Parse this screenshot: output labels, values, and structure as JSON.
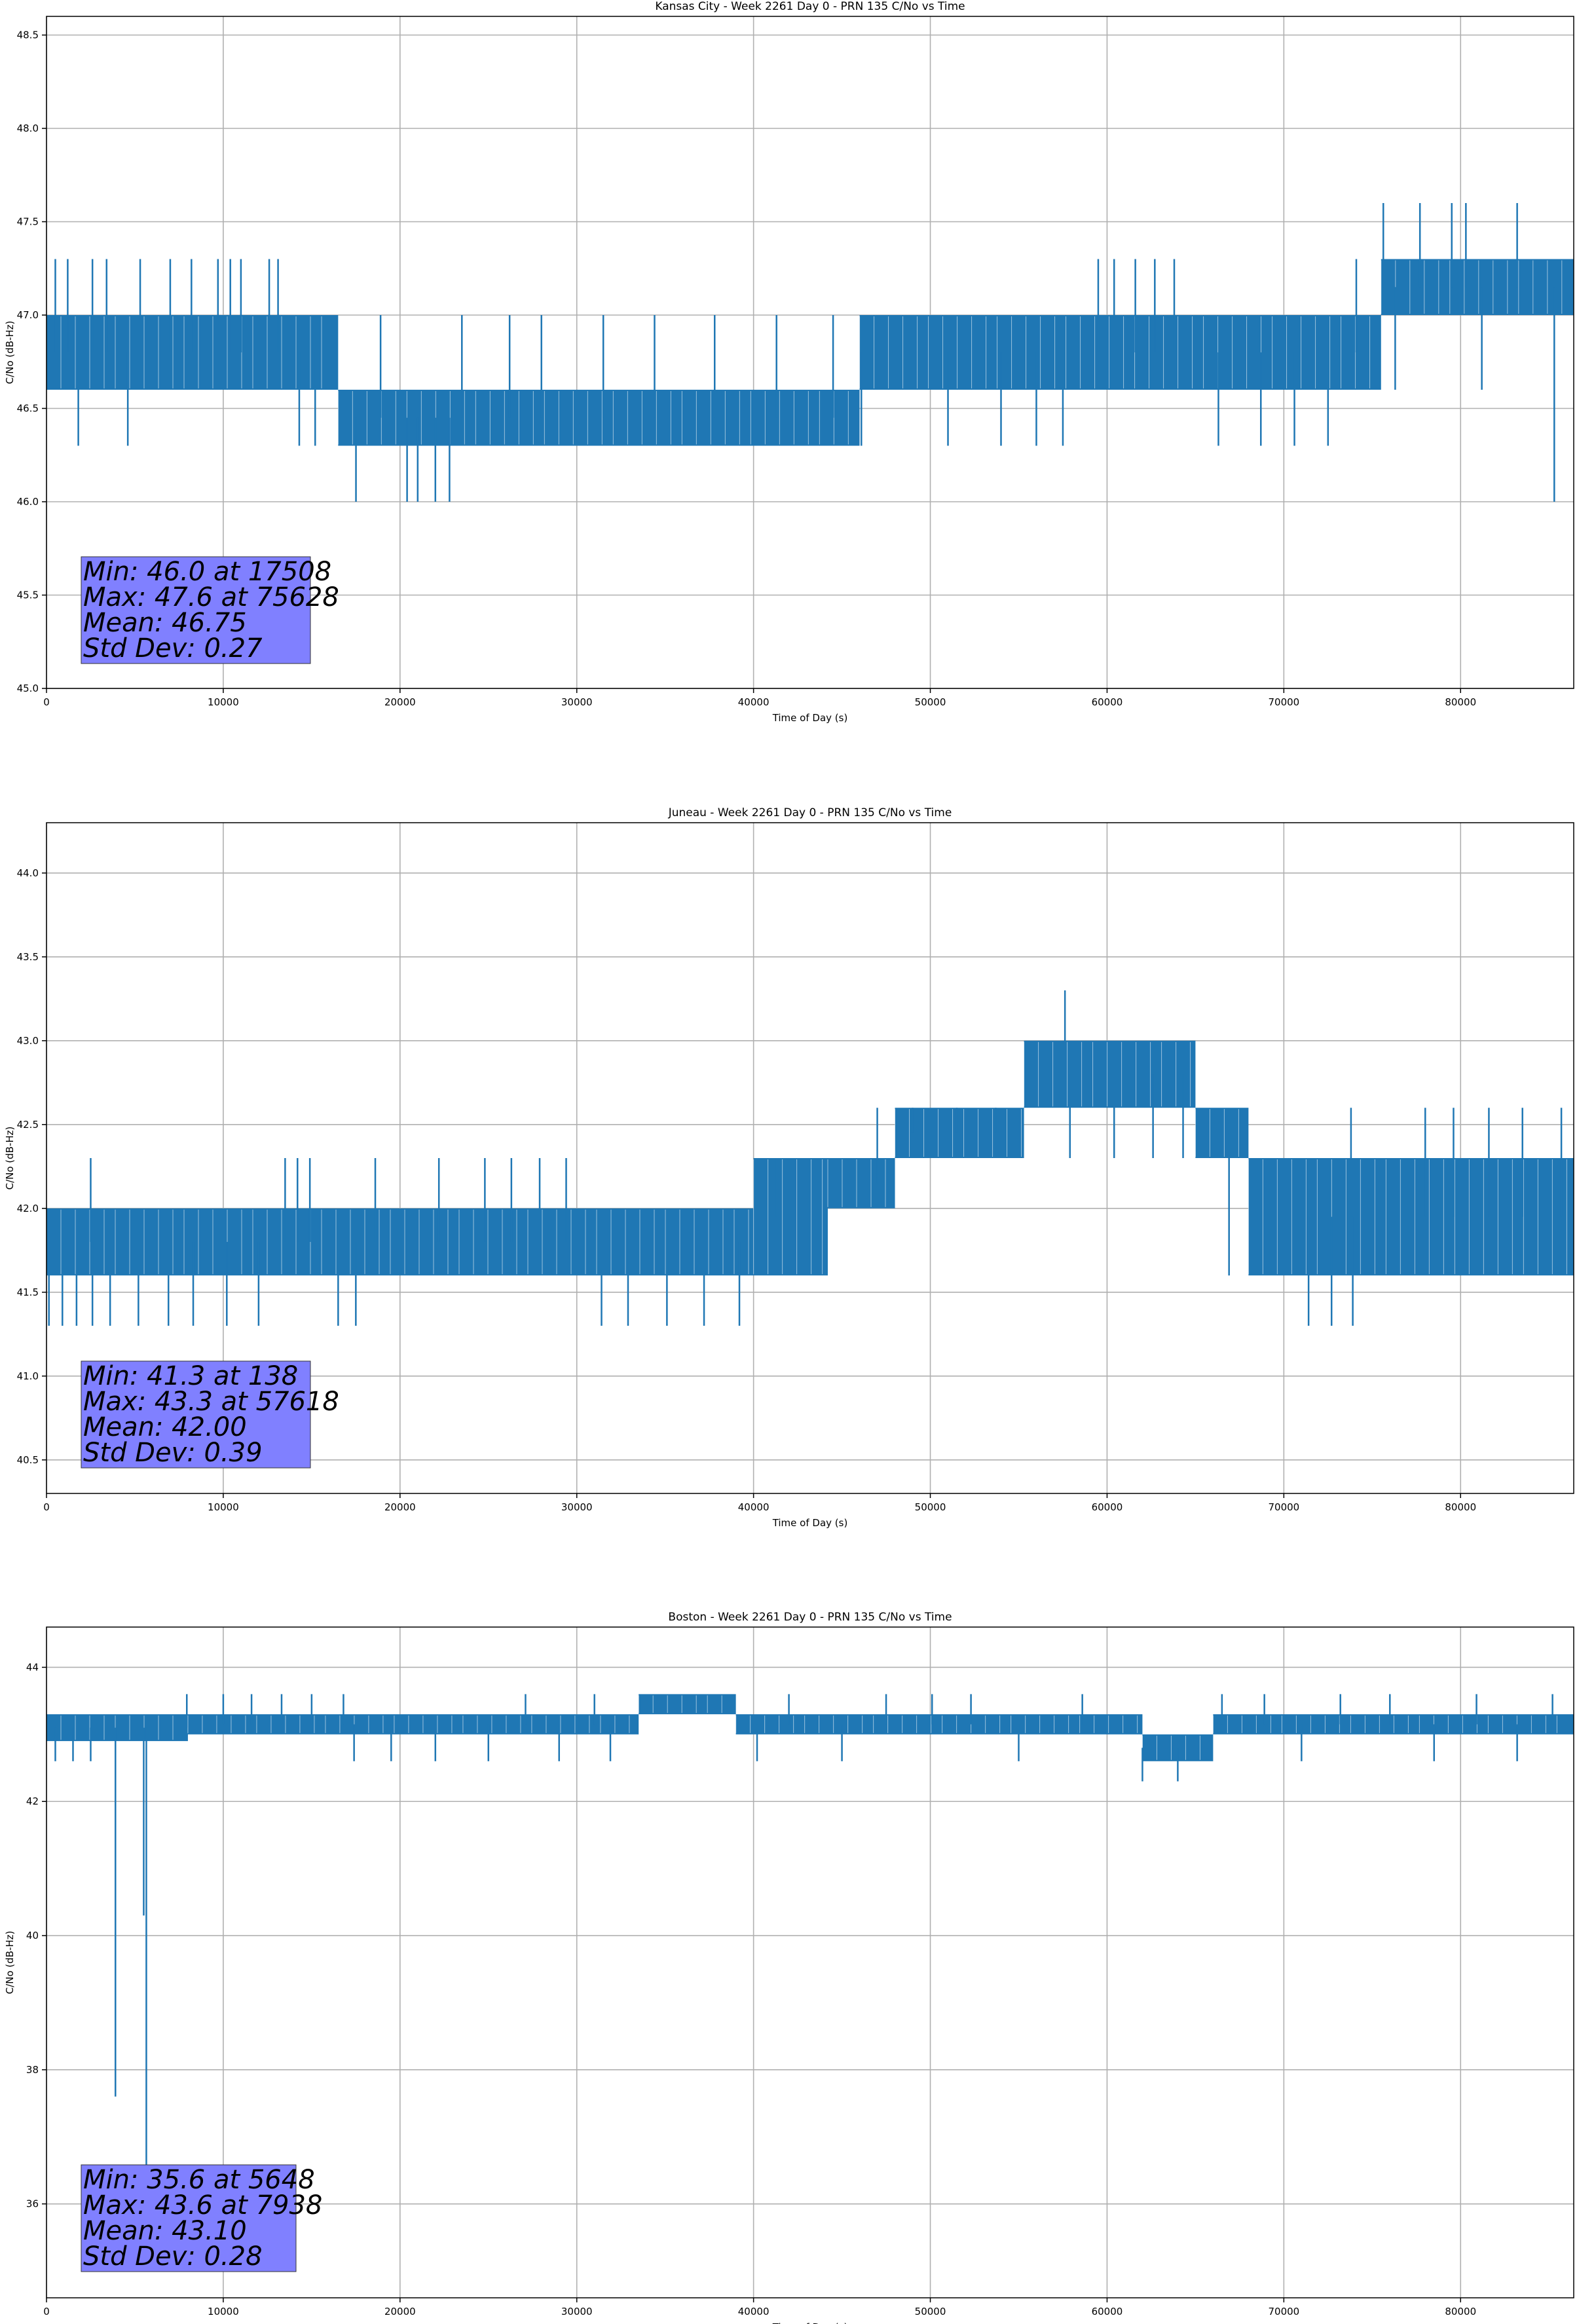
{
  "chart_data": [
    {
      "type": "line",
      "title": "Kansas City - Week 2261 Day 0 - PRN 135 C/No vs Time",
      "xlabel": "Time of Day (s)",
      "ylabel": "C/No (dB-Hz)",
      "xlim": [
        0,
        86400
      ],
      "ylim": [
        45.0,
        48.6
      ],
      "xticks": [
        0,
        10000,
        20000,
        30000,
        40000,
        50000,
        60000,
        70000,
        80000
      ],
      "yticks": [
        45.0,
        45.5,
        46.0,
        46.5,
        47.0,
        47.5,
        48.0,
        48.5
      ],
      "ytick_labels": [
        "45.0",
        "45.5",
        "46.0",
        "46.5",
        "47.0",
        "47.5",
        "48.0",
        "48.5"
      ],
      "grid": true,
      "color": "#1f77b4",
      "segments": [
        {
          "x0": 0,
          "x1": 16500,
          "lo": 46.6,
          "hi": 47.0
        },
        {
          "x0": 16500,
          "x1": 46000,
          "lo": 46.3,
          "hi": 46.6
        },
        {
          "x0": 46000,
          "x1": 75500,
          "lo": 46.6,
          "hi": 47.0
        },
        {
          "x0": 75500,
          "x1": 86400,
          "lo": 47.0,
          "hi": 47.3
        }
      ],
      "spikes": [
        {
          "x": 500,
          "v": 47.3
        },
        {
          "x": 1200,
          "v": 47.3
        },
        {
          "x": 1800,
          "v": 46.3
        },
        {
          "x": 2600,
          "v": 47.3
        },
        {
          "x": 3400,
          "v": 47.3
        },
        {
          "x": 4600,
          "v": 46.3
        },
        {
          "x": 5300,
          "v": 47.3
        },
        {
          "x": 7000,
          "v": 47.3
        },
        {
          "x": 8200,
          "v": 47.3
        },
        {
          "x": 9700,
          "v": 47.3
        },
        {
          "x": 10400,
          "v": 47.3
        },
        {
          "x": 11000,
          "v": 47.3
        },
        {
          "x": 12600,
          "v": 47.3
        },
        {
          "x": 13100,
          "v": 47.3
        },
        {
          "x": 14300,
          "v": 46.3
        },
        {
          "x": 15200,
          "v": 46.3
        },
        {
          "x": 17508,
          "v": 46.0
        },
        {
          "x": 18900,
          "v": 47.0
        },
        {
          "x": 20400,
          "v": 46.0
        },
        {
          "x": 21000,
          "v": 46.0
        },
        {
          "x": 22000,
          "v": 46.0
        },
        {
          "x": 22800,
          "v": 46.0
        },
        {
          "x": 23500,
          "v": 47.0
        },
        {
          "x": 26200,
          "v": 47.0
        },
        {
          "x": 28000,
          "v": 47.0
        },
        {
          "x": 31500,
          "v": 47.0
        },
        {
          "x": 34400,
          "v": 47.0
        },
        {
          "x": 37800,
          "v": 47.0
        },
        {
          "x": 41300,
          "v": 47.0
        },
        {
          "x": 44500,
          "v": 47.0
        },
        {
          "x": 46100,
          "v": 46.3
        },
        {
          "x": 51000,
          "v": 46.3
        },
        {
          "x": 54000,
          "v": 46.3
        },
        {
          "x": 56000,
          "v": 46.3
        },
        {
          "x": 57500,
          "v": 46.3
        },
        {
          "x": 59500,
          "v": 47.3
        },
        {
          "x": 60400,
          "v": 47.3
        },
        {
          "x": 61600,
          "v": 47.3
        },
        {
          "x": 62700,
          "v": 47.3
        },
        {
          "x": 63800,
          "v": 47.3
        },
        {
          "x": 66300,
          "v": 46.3
        },
        {
          "x": 68700,
          "v": 46.3
        },
        {
          "x": 70600,
          "v": 46.3
        },
        {
          "x": 72500,
          "v": 46.3
        },
        {
          "x": 74100,
          "v": 47.3
        },
        {
          "x": 75628,
          "v": 47.6
        },
        {
          "x": 76300,
          "v": 46.6
        },
        {
          "x": 77700,
          "v": 47.6
        },
        {
          "x": 79500,
          "v": 47.6
        },
        {
          "x": 80300,
          "v": 47.6
        },
        {
          "x": 81200,
          "v": 46.6
        },
        {
          "x": 83200,
          "v": 47.6
        },
        {
          "x": 85300,
          "v": 46.0
        }
      ],
      "stats": {
        "min": "Min: 46.0 at 17508",
        "max": "Max: 47.6 at 75628",
        "mean": "Mean: 46.75",
        "std": "Std Dev: 0.27"
      }
    },
    {
      "type": "line",
      "title": "Juneau - Week 2261 Day 0 - PRN 135 C/No vs Time",
      "xlabel": "Time of Day (s)",
      "ylabel": "C/No (dB-Hz)",
      "xlim": [
        0,
        86400
      ],
      "ylim": [
        40.3,
        44.3
      ],
      "xticks": [
        0,
        10000,
        20000,
        30000,
        40000,
        50000,
        60000,
        70000,
        80000
      ],
      "yticks": [
        40.5,
        41.0,
        41.5,
        42.0,
        42.5,
        43.0,
        43.5,
        44.0
      ],
      "ytick_labels": [
        "40.5",
        "41.0",
        "41.5",
        "42.0",
        "42.5",
        "43.0",
        "43.5",
        "44.0"
      ],
      "grid": true,
      "color": "#1f77b4",
      "segments": [
        {
          "x0": 0,
          "x1": 40000,
          "lo": 41.6,
          "hi": 42.0
        },
        {
          "x0": 40000,
          "x1": 44200,
          "lo": 41.6,
          "hi": 42.3
        },
        {
          "x0": 44200,
          "x1": 48000,
          "lo": 42.0,
          "hi": 42.3
        },
        {
          "x0": 48000,
          "x1": 55300,
          "lo": 42.3,
          "hi": 42.6
        },
        {
          "x0": 55300,
          "x1": 65000,
          "lo": 42.6,
          "hi": 43.0
        },
        {
          "x0": 65000,
          "x1": 68000,
          "lo": 42.3,
          "hi": 42.6
        },
        {
          "x0": 68000,
          "x1": 86400,
          "lo": 41.6,
          "hi": 42.3
        }
      ],
      "spikes": [
        {
          "x": 138,
          "v": 41.3
        },
        {
          "x": 900,
          "v": 41.3
        },
        {
          "x": 1700,
          "v": 41.3
        },
        {
          "x": 2500,
          "v": 42.3
        },
        {
          "x": 2600,
          "v": 41.3
        },
        {
          "x": 3600,
          "v": 41.3
        },
        {
          "x": 5200,
          "v": 41.3
        },
        {
          "x": 6900,
          "v": 41.3
        },
        {
          "x": 8300,
          "v": 41.3
        },
        {
          "x": 10200,
          "v": 41.3
        },
        {
          "x": 12000,
          "v": 41.3
        },
        {
          "x": 13500,
          "v": 42.3
        },
        {
          "x": 14200,
          "v": 42.3
        },
        {
          "x": 14900,
          "v": 42.3
        },
        {
          "x": 16500,
          "v": 41.3
        },
        {
          "x": 17500,
          "v": 41.3
        },
        {
          "x": 18600,
          "v": 42.3
        },
        {
          "x": 22200,
          "v": 42.3
        },
        {
          "x": 24800,
          "v": 42.3
        },
        {
          "x": 26300,
          "v": 42.3
        },
        {
          "x": 27900,
          "v": 42.3
        },
        {
          "x": 29400,
          "v": 42.3
        },
        {
          "x": 31400,
          "v": 41.3
        },
        {
          "x": 32900,
          "v": 41.3
        },
        {
          "x": 35100,
          "v": 41.3
        },
        {
          "x": 37200,
          "v": 41.3
        },
        {
          "x": 39200,
          "v": 41.3
        },
        {
          "x": 40100,
          "v": 42.3
        },
        {
          "x": 41300,
          "v": 42.3
        },
        {
          "x": 47000,
          "v": 42.6
        },
        {
          "x": 49000,
          "v": 42.6
        },
        {
          "x": 51500,
          "v": 42.6
        },
        {
          "x": 53700,
          "v": 42.6
        },
        {
          "x": 57618,
          "v": 43.3
        },
        {
          "x": 57900,
          "v": 42.3
        },
        {
          "x": 60400,
          "v": 42.3
        },
        {
          "x": 62600,
          "v": 42.3
        },
        {
          "x": 64300,
          "v": 42.3
        },
        {
          "x": 66900,
          "v": 41.6
        },
        {
          "x": 71400,
          "v": 41.3
        },
        {
          "x": 72700,
          "v": 41.3
        },
        {
          "x": 73900,
          "v": 41.3
        },
        {
          "x": 73800,
          "v": 42.6
        },
        {
          "x": 78000,
          "v": 42.6
        },
        {
          "x": 79600,
          "v": 42.6
        },
        {
          "x": 81600,
          "v": 42.6
        },
        {
          "x": 83500,
          "v": 42.6
        },
        {
          "x": 85700,
          "v": 42.6
        }
      ],
      "stats": {
        "min": "Min: 41.3 at 138",
        "max": "Max: 43.3 at 57618",
        "mean": "Mean: 42.00",
        "std": "Std Dev: 0.39"
      }
    },
    {
      "type": "line",
      "title": "Boston - Week 2261 Day 0 - PRN 135 C/No vs Time",
      "xlabel": "Time of Day (s)",
      "ylabel": "C/No (dB-Hz)",
      "xlim": [
        0,
        86400
      ],
      "ylim": [
        34.6,
        44.6
      ],
      "xticks": [
        0,
        10000,
        20000,
        30000,
        40000,
        50000,
        60000,
        70000,
        80000
      ],
      "yticks": [
        36,
        38,
        40,
        42,
        44
      ],
      "ytick_labels": [
        "36",
        "38",
        "40",
        "42",
        "44"
      ],
      "grid": true,
      "color": "#1f77b4",
      "segments": [
        {
          "x0": 0,
          "x1": 8000,
          "lo": 42.9,
          "hi": 43.3
        },
        {
          "x0": 8000,
          "x1": 33500,
          "lo": 43.0,
          "hi": 43.3
        },
        {
          "x0": 33500,
          "x1": 39000,
          "lo": 43.3,
          "hi": 43.6
        },
        {
          "x0": 39000,
          "x1": 62000,
          "lo": 43.0,
          "hi": 43.3
        },
        {
          "x0": 62000,
          "x1": 66000,
          "lo": 42.6,
          "hi": 43.0
        },
        {
          "x0": 66000,
          "x1": 86400,
          "lo": 43.0,
          "hi": 43.3
        }
      ],
      "spikes": [
        {
          "x": 3900,
          "v": 37.6
        },
        {
          "x": 5648,
          "v": 35.6
        },
        {
          "x": 5500,
          "v": 40.3
        },
        {
          "x": 500,
          "v": 42.6
        },
        {
          "x": 1500,
          "v": 42.6
        },
        {
          "x": 2500,
          "v": 42.6
        },
        {
          "x": 7938,
          "v": 43.6
        },
        {
          "x": 10000,
          "v": 43.6
        },
        {
          "x": 11600,
          "v": 43.6
        },
        {
          "x": 13300,
          "v": 43.6
        },
        {
          "x": 15000,
          "v": 43.6
        },
        {
          "x": 16800,
          "v": 43.6
        },
        {
          "x": 17400,
          "v": 42.6
        },
        {
          "x": 19500,
          "v": 42.6
        },
        {
          "x": 22000,
          "v": 42.6
        },
        {
          "x": 25000,
          "v": 42.6
        },
        {
          "x": 27100,
          "v": 43.6
        },
        {
          "x": 29000,
          "v": 42.6
        },
        {
          "x": 31000,
          "v": 43.6
        },
        {
          "x": 31900,
          "v": 42.6
        },
        {
          "x": 40200,
          "v": 42.6
        },
        {
          "x": 42000,
          "v": 43.6
        },
        {
          "x": 45000,
          "v": 42.6
        },
        {
          "x": 47500,
          "v": 43.6
        },
        {
          "x": 50100,
          "v": 43.6
        },
        {
          "x": 52300,
          "v": 43.6
        },
        {
          "x": 55000,
          "v": 42.6
        },
        {
          "x": 58600,
          "v": 43.6
        },
        {
          "x": 62000,
          "v": 42.3
        },
        {
          "x": 64000,
          "v": 42.3
        },
        {
          "x": 66500,
          "v": 43.6
        },
        {
          "x": 68900,
          "v": 43.6
        },
        {
          "x": 71000,
          "v": 42.6
        },
        {
          "x": 73200,
          "v": 43.6
        },
        {
          "x": 76000,
          "v": 43.6
        },
        {
          "x": 78500,
          "v": 42.6
        },
        {
          "x": 80900,
          "v": 43.6
        },
        {
          "x": 83200,
          "v": 42.6
        },
        {
          "x": 85200,
          "v": 43.6
        }
      ],
      "stats": {
        "min": "Min: 35.6 at 5648",
        "max": "Max: 43.6 at 7938",
        "mean": "Mean: 43.10",
        "std": "Std Dev: 0.28"
      }
    }
  ]
}
